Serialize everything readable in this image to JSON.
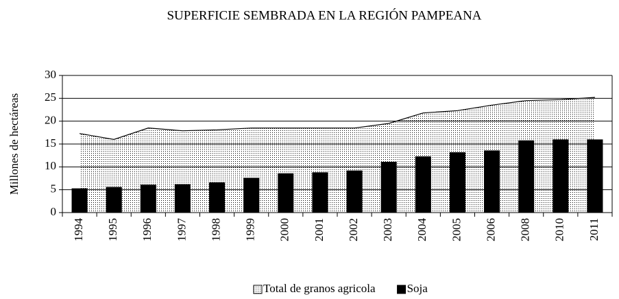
{
  "chart_data": {
    "type": "bar",
    "title": "SUPERFICIE SEMBRADA EN LA REGIÓN PAMPEANA",
    "y_label": "Millones  de hectáreas",
    "categories": [
      "1994",
      "1995",
      "1996",
      "1997",
      "1998",
      "1999",
      "2000",
      "2001",
      "2002",
      "2003",
      "2004",
      "2005",
      "2006",
      "2008",
      "2010",
      "2011"
    ],
    "series": [
      {
        "name": "Total de granos agricola",
        "type": "area",
        "color": "#000000",
        "values": [
          17.3,
          16.0,
          18.5,
          17.9,
          18.1,
          18.5,
          18.5,
          18.5,
          18.5,
          19.5,
          21.8,
          22.3,
          23.5,
          24.5,
          24.7,
          25.2
        ]
      },
      {
        "name": "Soja",
        "type": "bar",
        "color": "#000000",
        "values": [
          5.3,
          5.6,
          6.1,
          6.2,
          6.6,
          7.6,
          8.6,
          8.8,
          9.2,
          11.1,
          12.3,
          13.2,
          13.6,
          15.8,
          16.0,
          16.0
        ]
      }
    ],
    "ylim": [
      0,
      30
    ],
    "yticks": [
      0,
      5,
      10,
      15,
      20,
      25,
      30
    ],
    "grid": true,
    "legend": "bottom"
  }
}
